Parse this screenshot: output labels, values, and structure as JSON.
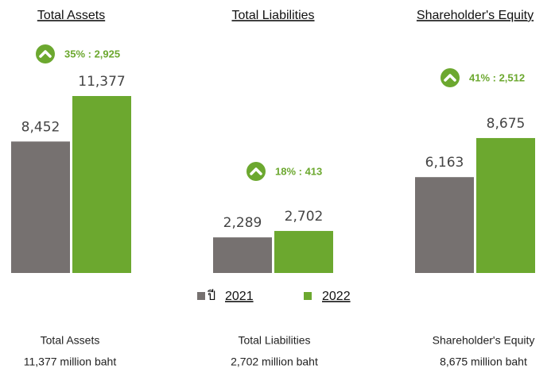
{
  "chart_data": [
    {
      "type": "bar",
      "title": "Total Assets",
      "annotation": "35% : 2,925",
      "series": [
        {
          "name": "2021",
          "color": "#767170",
          "values": [
            8452
          ],
          "value_labels": [
            "8,452"
          ]
        },
        {
          "name": "2022",
          "color": "#6ca82f",
          "values": [
            11377
          ],
          "value_labels": [
            "11,377"
          ]
        }
      ]
    },
    {
      "type": "bar",
      "title": "Total Liabilities",
      "annotation": "18% : 413",
      "series": [
        {
          "name": "2021",
          "color": "#767170",
          "values": [
            2289
          ],
          "value_labels": [
            "2,289"
          ]
        },
        {
          "name": "2022",
          "color": "#6ca82f",
          "values": [
            2702
          ],
          "value_labels": [
            "2,702"
          ]
        }
      ]
    },
    {
      "type": "bar",
      "title": "Shareholder's Equity",
      "annotation": "41% : 2,512",
      "series": [
        {
          "name": "2021",
          "color": "#767170",
          "values": [
            6163
          ],
          "value_labels": [
            "6,163"
          ]
        },
        {
          "name": "2022",
          "color": "#6ca82f",
          "values": [
            8675
          ],
          "value_labels": [
            "8,675"
          ]
        }
      ]
    }
  ],
  "legend_prefix": "ปี",
  "captions": [
    {
      "label": "Total Assets",
      "value": "11,377 million baht"
    },
    {
      "label": "Total Liabilities",
      "value": "2,702 million baht"
    },
    {
      "label": "Shareholder's Equity",
      "value": "8,675 million baht"
    }
  ]
}
